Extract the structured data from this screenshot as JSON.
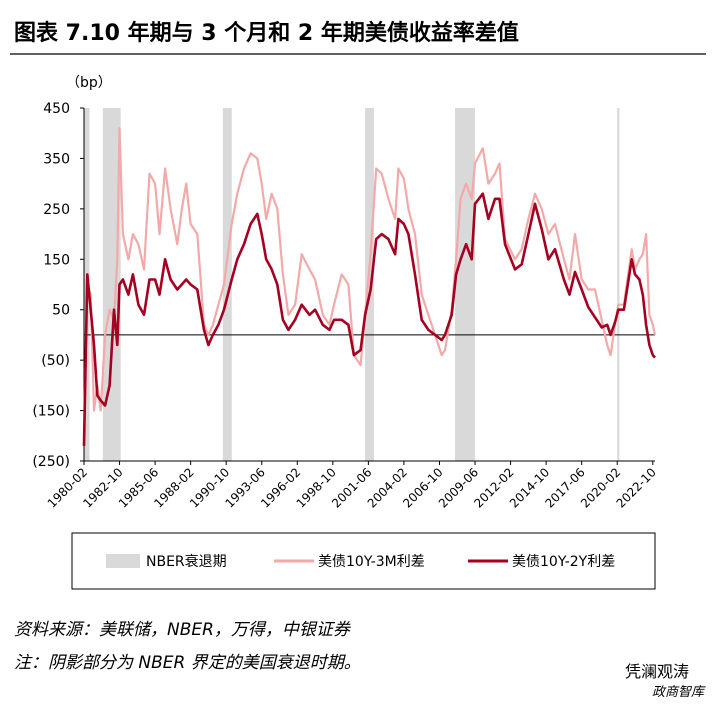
{
  "chart_data": {
    "type": "line",
    "title": "图表 7.10 年期与 3 个月和 2 年期美债收益率差值",
    "y_unit": "（bp）",
    "recession_label": "NBER衰退期",
    "recession_color": "#d9d9d9",
    "recessions": [
      {
        "start": "1980-01",
        "end": "1980-07"
      },
      {
        "start": "1981-07",
        "end": "1982-11"
      },
      {
        "start": "1990-07",
        "end": "1991-03"
      },
      {
        "start": "2001-03",
        "end": "2001-11"
      },
      {
        "start": "2007-12",
        "end": "2009-06"
      },
      {
        "start": "2020-02",
        "end": "2020-04"
      }
    ],
    "x": [
      "1980-02",
      "1980-05",
      "1980-08",
      "1980-11",
      "1981-02",
      "1981-05",
      "1981-09",
      "1982-01",
      "1982-05",
      "1982-08",
      "1982-10",
      "1983-01",
      "1983-06",
      "1983-10",
      "1984-03",
      "1984-08",
      "1985-01",
      "1985-06",
      "1985-10",
      "1986-03",
      "1986-08",
      "1987-02",
      "1987-06",
      "1987-10",
      "1988-02",
      "1988-08",
      "1989-02",
      "1989-06",
      "1989-10",
      "1990-03",
      "1990-08",
      "1991-03",
      "1991-08",
      "1992-02",
      "1992-08",
      "1993-02",
      "1993-06",
      "1993-10",
      "1994-03",
      "1994-08",
      "1995-01",
      "1995-06",
      "1995-12",
      "1996-06",
      "1997-01",
      "1997-06",
      "1998-01",
      "1998-07",
      "1998-11",
      "1999-06",
      "1999-12",
      "2000-05",
      "2000-11",
      "2001-03",
      "2001-08",
      "2002-01",
      "2002-06",
      "2002-12",
      "2003-06",
      "2003-09",
      "2004-02",
      "2004-06",
      "2004-12",
      "2005-06",
      "2005-12",
      "2006-06",
      "2006-12",
      "2007-03",
      "2007-09",
      "2008-01",
      "2008-05",
      "2008-10",
      "2009-03",
      "2009-06",
      "2010-01",
      "2010-06",
      "2010-12",
      "2011-04",
      "2011-09",
      "2012-06",
      "2012-12",
      "2013-06",
      "2013-12",
      "2014-06",
      "2014-12",
      "2015-06",
      "2016-02",
      "2016-07",
      "2016-12",
      "2017-06",
      "2017-12",
      "2018-06",
      "2018-12",
      "2019-05",
      "2019-08",
      "2019-12",
      "2020-03",
      "2020-08",
      "2021-03",
      "2021-06",
      "2021-10",
      "2022-01",
      "2022-04",
      "2022-07",
      "2022-10",
      "2022-12"
    ],
    "series": [
      {
        "name": "美债10Y-3M利差",
        "color": "#f2a9a9",
        "width": 2.2,
        "values": [
          -200,
          100,
          80,
          -150,
          -100,
          -150,
          0,
          50,
          30,
          150,
          410,
          200,
          150,
          200,
          180,
          130,
          320,
          300,
          200,
          330,
          250,
          180,
          250,
          300,
          220,
          200,
          20,
          0,
          20,
          60,
          100,
          220,
          280,
          330,
          360,
          350,
          300,
          230,
          280,
          250,
          120,
          40,
          60,
          160,
          130,
          110,
          40,
          20,
          60,
          120,
          100,
          -40,
          -60,
          40,
          160,
          330,
          320,
          270,
          230,
          330,
          310,
          250,
          200,
          80,
          40,
          0,
          -40,
          -30,
          50,
          150,
          270,
          300,
          270,
          340,
          370,
          300,
          320,
          340,
          190,
          150,
          170,
          230,
          280,
          250,
          200,
          220,
          150,
          110,
          200,
          110,
          90,
          90,
          30,
          -20,
          -40,
          20,
          60,
          60,
          170,
          130,
          150,
          160,
          200,
          40,
          20,
          0
        ]
      },
      {
        "name": "美债10Y-2Y利差",
        "color": "#a50021",
        "width": 2.6,
        "values": [
          -220,
          120,
          50,
          -20,
          -120,
          -130,
          -140,
          -100,
          50,
          -20,
          100,
          110,
          80,
          120,
          60,
          40,
          110,
          110,
          80,
          150,
          110,
          90,
          100,
          110,
          100,
          90,
          10,
          -20,
          0,
          20,
          50,
          110,
          150,
          180,
          220,
          240,
          200,
          150,
          130,
          100,
          30,
          10,
          30,
          60,
          40,
          50,
          20,
          10,
          30,
          30,
          20,
          -40,
          -30,
          40,
          90,
          190,
          200,
          190,
          160,
          230,
          220,
          200,
          120,
          30,
          10,
          0,
          -10,
          0,
          40,
          120,
          150,
          180,
          150,
          260,
          280,
          230,
          270,
          270,
          180,
          130,
          140,
          200,
          260,
          210,
          150,
          170,
          110,
          80,
          125,
          90,
          55,
          35,
          15,
          20,
          0,
          25,
          50,
          50,
          150,
          120,
          110,
          80,
          20,
          -20,
          -40,
          -45
        ]
      }
    ],
    "xlim": [
      "1980-02",
      "2022-12"
    ],
    "xticks": [
      "1980-02",
      "1982-10",
      "1985-06",
      "1988-02",
      "1990-10",
      "1993-06",
      "1996-02",
      "1998-10",
      "2001-06",
      "2004-02",
      "2006-10",
      "2009-06",
      "2012-02",
      "2014-10",
      "2017-06",
      "2020-02",
      "2022-10"
    ],
    "ylim": [
      -250,
      450
    ],
    "yticks": [
      {
        "value": -250,
        "label": "(250)"
      },
      {
        "value": -150,
        "label": "(150)"
      },
      {
        "value": -50,
        "label": "(50)"
      },
      50,
      150,
      250,
      350,
      450
    ],
    "grid": false
  },
  "source": "资料来源：美联储，NBER，万得，中银证券",
  "note": "注：阴影部分为 NBER 界定的美国衰退时期。",
  "watermark": "凭澜观涛",
  "watermark2": "政商智库"
}
